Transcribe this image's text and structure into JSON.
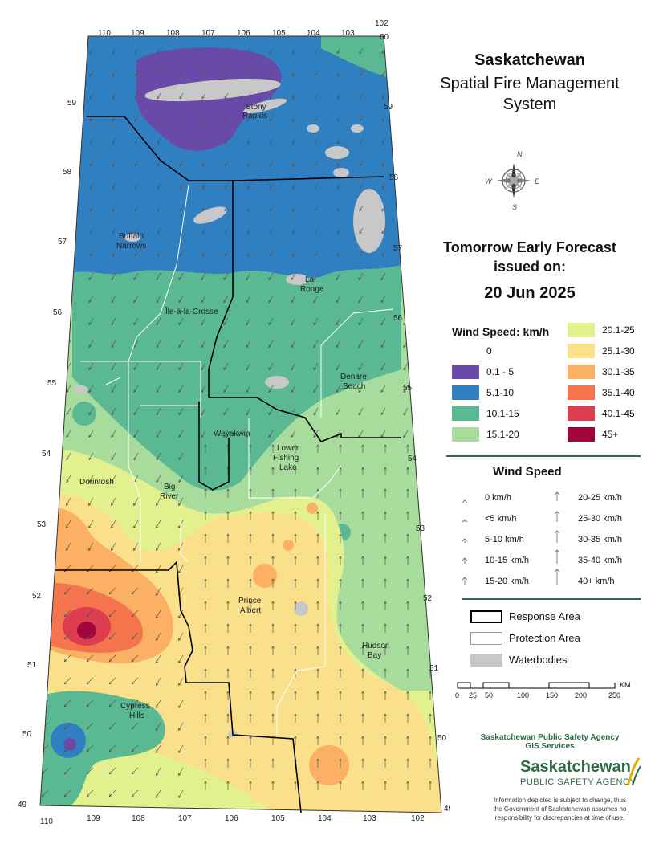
{
  "title": {
    "line1": "Saskatchewan",
    "line2": "Spatial Fire Management",
    "line3": "System"
  },
  "forecast": {
    "line1": "Tomorrow Early Forecast",
    "line2": "issued on:",
    "date": "20 Jun 2025"
  },
  "colors": {
    "c0": "#ffffff",
    "c1": "#6a4aa8",
    "c2": "#2f7fc1",
    "c3": "#5ab893",
    "c4": "#a8dc9c",
    "c5": "#e2f08e",
    "c6": "#fbe08c",
    "c7": "#fbb063",
    "c8": "#f4754d",
    "c9": "#dc3d50",
    "c10": "#a0063c",
    "water": "#c8c8c8"
  },
  "legend_speed": {
    "heading": "Wind Speed: km/h",
    "left": [
      {
        "label": "0",
        "color": "c0"
      },
      {
        "label": "0.1 - 5",
        "color": "c1"
      },
      {
        "label": "5.1-10",
        "color": "c2"
      },
      {
        "label": "10.1-15",
        "color": "c3"
      },
      {
        "label": "15.1-20",
        "color": "c4"
      }
    ],
    "right": [
      {
        "label": "20.1-25",
        "color": "c5"
      },
      {
        "label": "25.1-30",
        "color": "c6"
      },
      {
        "label": "30.1-35",
        "color": "c7"
      },
      {
        "label": "35.1-40",
        "color": "c8"
      },
      {
        "label": "40.1-45",
        "color": "c9"
      },
      {
        "label": "45+",
        "color": "c10"
      }
    ]
  },
  "wind_arrows": {
    "heading": "Wind Speed",
    "left": [
      "0 km/h",
      "<5 km/h",
      "5-10 km/h",
      "10-15 km/h",
      "15-20 km/h"
    ],
    "right": [
      "20-25 km/h",
      "25-30 km/h",
      "30-35 km/h",
      "35-40 km/h",
      "40+ km/h"
    ]
  },
  "areas_legend": {
    "response": "Response Area",
    "protection": "Protection Area",
    "water": "Waterbodies"
  },
  "scalebar": {
    "unit": "KM",
    "ticks": [
      "0",
      "25",
      "50",
      "100",
      "150",
      "200",
      "250"
    ]
  },
  "agency": {
    "line1": "Saskatchewan Public Safety Agency",
    "line2": "GIS  Services"
  },
  "logo": {
    "name": "Saskatchewan",
    "sub": "PUBLIC SAFETY AGENCY"
  },
  "disclaimer": {
    "l1": "Information depicted is subject to change, thus",
    "l2": "the Government of Saskatchewan assumes no",
    "l3": "responsibility for discrepancies at time of use."
  },
  "compass": {
    "n": "N",
    "s": "S",
    "e": "E",
    "w": "W"
  },
  "places": {
    "stony": [
      "Stony",
      "Rapids"
    ],
    "buffalo": [
      "Buffalo",
      "Narrows"
    ],
    "laronge": [
      "La",
      "Ronge"
    ],
    "ile": "Île-à-la-Crosse",
    "denare": [
      "Denare",
      "Beach"
    ],
    "weyakwin": "Weyakwin",
    "lowerfishing": [
      "Lower",
      "Fishing",
      "Lake"
    ],
    "dorintosh": "Dorintosh",
    "bigriver": [
      "Big",
      "River"
    ],
    "princealbert": [
      "Prince",
      "Albert"
    ],
    "hudsonbay": [
      "Hudson",
      "Bay"
    ],
    "cypress": [
      "Cypress",
      "Hills"
    ]
  },
  "coords": {
    "top": [
      "110",
      "109",
      "108",
      "107",
      "106",
      "105",
      "104",
      "103",
      "102"
    ],
    "bottom": [
      "110",
      "109",
      "108",
      "107",
      "106",
      "105",
      "104",
      "103",
      "102"
    ],
    "left": [
      "59",
      "58",
      "57",
      "56",
      "55",
      "54",
      "53",
      "52",
      "51",
      "50",
      "49"
    ],
    "right": [
      "60",
      "59",
      "58",
      "57",
      "56",
      "55",
      "54",
      "53",
      "52",
      "51",
      "50",
      "49"
    ]
  }
}
